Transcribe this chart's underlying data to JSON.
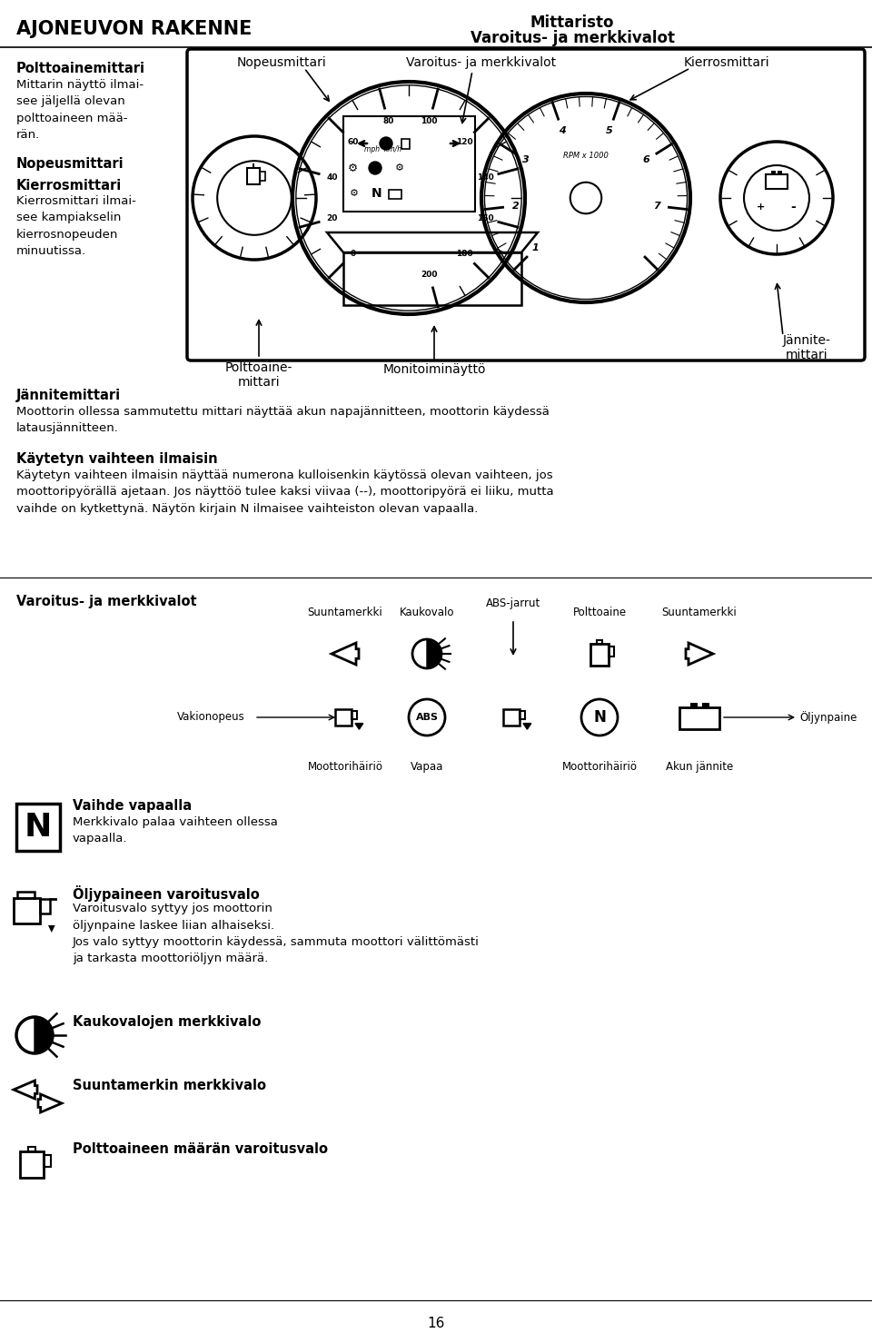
{
  "bg_color": "#ffffff",
  "text_color": "#000000",
  "title_left": "AJONEUVON RAKENNE",
  "title_right_line1": "Mittaristo",
  "title_right_line2": "Varoitus- ja merkkivalot",
  "section1_header": "Polttoainemittari",
  "section1_text": "Mittarin näyttö ilmai-\nsee jäljellä olevan\npolttoaineen mää-\nrän.",
  "section2_header": "Nopeusmittari",
  "section3_header": "Kierrosmittari",
  "section3_text": "Kierrosmittari ilmai-\nsee kampiakselin\nkierrosnopeuden\nminuutissa.",
  "dashboard_label_nopeus": "Nopeusmittari",
  "dashboard_label_varoitus": "Varoitus- ja merkkivalot",
  "dashboard_label_kierros": "Kierrosmittari",
  "dashboard_label_polttoaine": "Polttoaine-\nmittari",
  "dashboard_label_monitoimi": "Monitoiminäyttö",
  "dashboard_label_jannite": "Jännite-\nmittari",
  "section4_header": "Jännitemittari",
  "section4_text": "Moottorin ollessa sammutettu mittari näyttää akun napajännitteen, moottorin käydessä\nlatausjännitteen.",
  "section5_header": "Käytetyn vaihteen ilmaisin",
  "section5_text": "Käytetyn vaihteen ilmaisin näyttää numerona kulloisenkin käytössä olevan vaihteen, jos\nmoottoripyörällä ajetaan. Jos näyttöö tulee kaksi viivaa (--), moottoripyörä ei liiku, mutta\nvaihde on kytkettynä. Näytön kirjain N ilmaisee vaihteiston olevan vapaalla.",
  "section6_header": "Varoitus- ja merkkivalot",
  "warning_label_abs": "ABS-jarrut",
  "warning_label_suunta1": "Suuntamerkki",
  "warning_label_kaukovalo": "Kaukovalo",
  "warning_label_polttoaine_w": "Polttoaine",
  "warning_label_suunta2": "Suuntamerkki",
  "warning_label_vakionopeus": "Vakionopeus",
  "warning_label_oljynpaine": "Öljynpaine",
  "warning_label_moottorihairio": "Moottorihäiriö",
  "warning_label_vapaa": "Vapaa",
  "warning_label_akun": "Akun jännite",
  "section7_header1": "Vaihde vapaalla",
  "section7_text1": "Merkkivalo palaa vaihteen ollessa\nvapaalla.",
  "section8_header": "Öljypaineen varoitusvalo",
  "section8_text": "Varoitusvalo syttyy jos moottorin\nöljynpaine laskee liian alhaiseksi.\nJos valo syttyy moottorin käydessä, sammuta moottori välittömästi\nja tarkasta moottoriöljyn määrä.",
  "section9_header": "Kaukovalojen merkkivalo",
  "section10_header": "Suuntamerkin merkkivalo",
  "section11_header": "Polttoaineen määrän varoitusvalo",
  "page_number": "16"
}
